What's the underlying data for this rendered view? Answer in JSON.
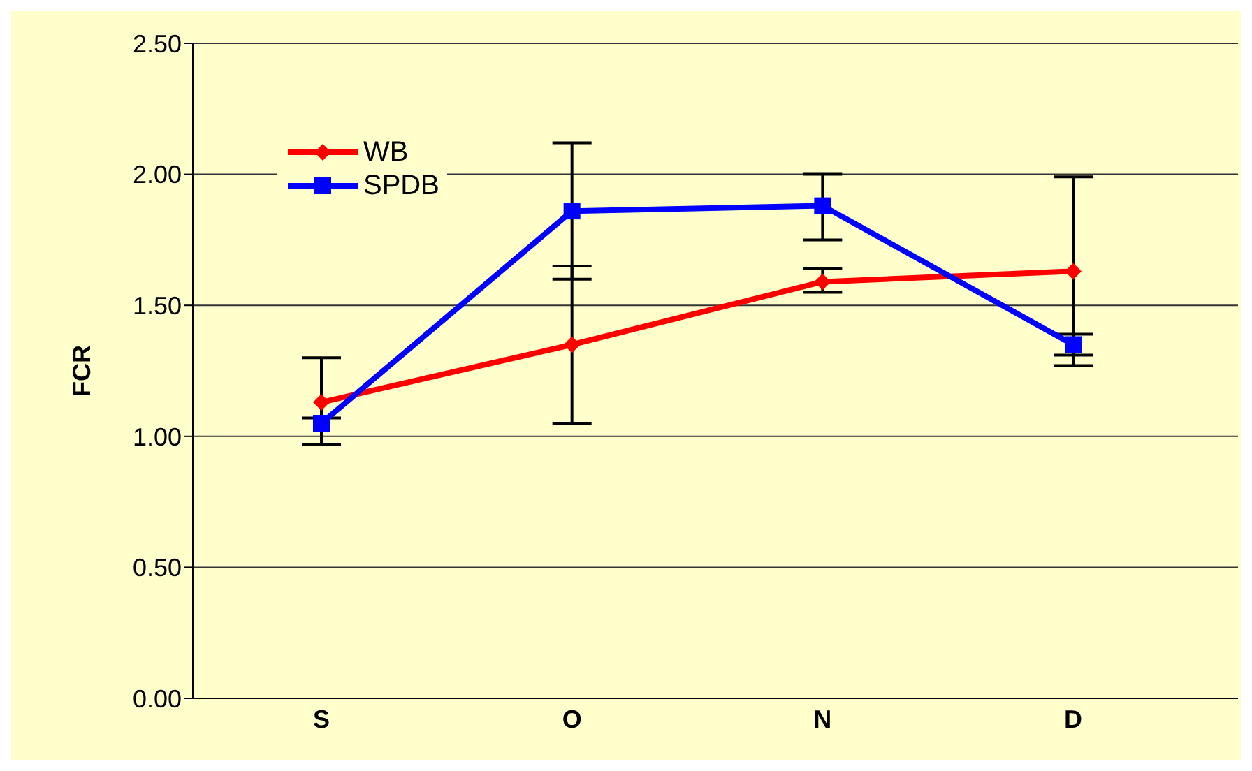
{
  "chart_data": {
    "type": "line",
    "ylabel": "FCR",
    "categories": [
      "S",
      "O",
      "N",
      "D"
    ],
    "series": [
      {
        "name": "WB",
        "color": "#ff0000",
        "marker": "diamond",
        "values": [
          1.13,
          1.35,
          1.59,
          1.63
        ],
        "errors": [
          [
            0.97,
            1.3
          ],
          [
            1.05,
            1.65
          ],
          [
            1.55,
            1.64
          ],
          [
            1.27,
            1.99
          ]
        ]
      },
      {
        "name": "SPDB",
        "color": "#0000ff",
        "marker": "square",
        "values": [
          1.05,
          1.86,
          1.88,
          1.35
        ],
        "errors": [
          [
            0.97,
            1.07
          ],
          [
            1.6,
            2.12
          ],
          [
            1.75,
            2.0
          ],
          [
            1.31,
            1.39
          ]
        ]
      }
    ],
    "ylim": [
      0,
      2.5
    ],
    "yticks": [
      {
        "value": 0,
        "label": "0.00"
      },
      {
        "value": 0.5,
        "label": "0.50"
      },
      {
        "value": 1,
        "label": "1.00"
      },
      {
        "value": 1.5,
        "label": "1.50"
      },
      {
        "value": 2,
        "label": "2.00"
      },
      {
        "value": 2.5,
        "label": "2.50"
      }
    ],
    "grid": "y",
    "legend": "top left"
  }
}
